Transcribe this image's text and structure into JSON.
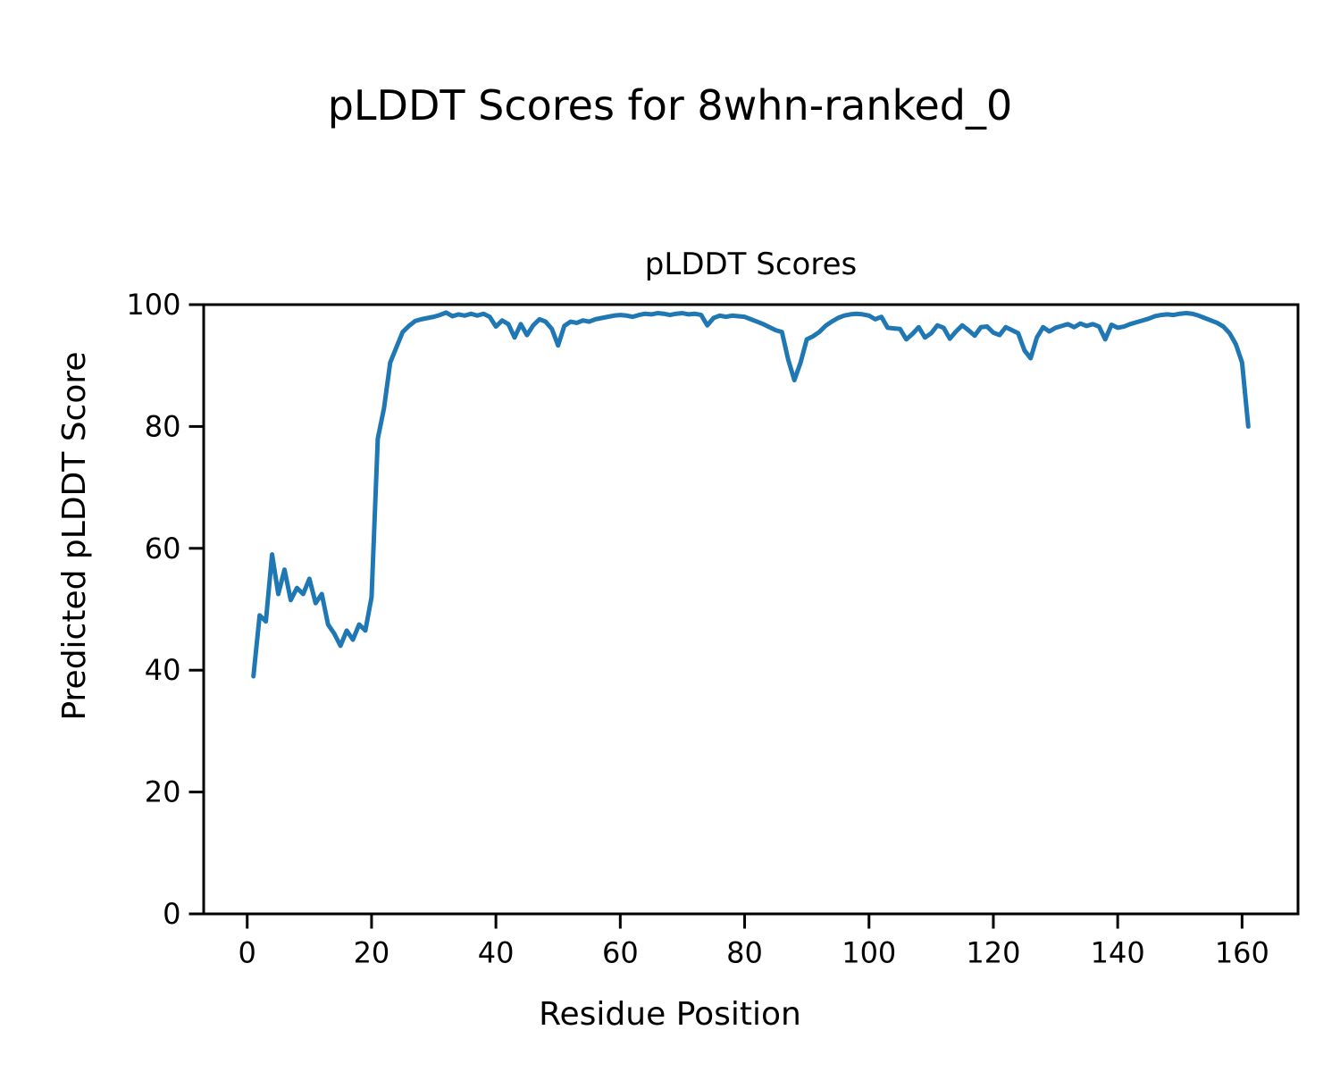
{
  "figure": {
    "suptitle": "pLDDT Scores for 8whn-ranked_0",
    "axes_title": "pLDDT Scores",
    "xlabel": "Residue Position",
    "ylabel": "Predicted pLDDT Score"
  },
  "chart_data": {
    "type": "line",
    "title": "pLDDT Scores",
    "suptitle": "pLDDT Scores for 8whn-ranked_0",
    "xlabel": "Residue Position",
    "ylabel": "Predicted pLDDT Score",
    "grid": false,
    "legend": null,
    "line_color": "#1f77b4",
    "line_width": 5,
    "axis_color": "#000000",
    "xlim": [
      -7,
      169
    ],
    "ylim": [
      0,
      100
    ],
    "xticks": [
      0,
      20,
      40,
      60,
      80,
      100,
      120,
      140,
      160
    ],
    "yticks": [
      0,
      20,
      40,
      60,
      80,
      100
    ],
    "x_positions": {
      "start": 1,
      "end": 161,
      "step": 1
    },
    "series": [
      {
        "name": "pLDDT",
        "y": [
          39.0,
          49.0,
          48.0,
          59.0,
          52.5,
          56.5,
          51.5,
          53.5,
          52.5,
          55.0,
          51.0,
          52.5,
          47.5,
          46.0,
          44.0,
          46.5,
          45.0,
          47.5,
          46.5,
          52.0,
          78.0,
          83.0,
          90.5,
          93.0,
          95.5,
          96.5,
          97.3,
          97.6,
          97.8,
          98.0,
          98.3,
          98.7,
          98.1,
          98.4,
          98.2,
          98.5,
          98.2,
          98.5,
          98.0,
          96.4,
          97.4,
          96.8,
          94.6,
          96.8,
          95.0,
          96.6,
          97.6,
          97.2,
          96.0,
          93.3,
          96.5,
          97.2,
          97.0,
          97.4,
          97.2,
          97.6,
          97.8,
          98.0,
          98.2,
          98.3,
          98.2,
          98.0,
          98.3,
          98.5,
          98.4,
          98.6,
          98.5,
          98.3,
          98.5,
          98.6,
          98.4,
          98.5,
          98.3,
          96.6,
          97.8,
          98.2,
          98.0,
          98.2,
          98.1,
          98.0,
          97.6,
          97.2,
          96.8,
          96.3,
          95.8,
          95.5,
          91.0,
          87.6,
          90.5,
          94.3,
          94.8,
          95.5,
          96.5,
          97.2,
          97.8,
          98.2,
          98.4,
          98.5,
          98.4,
          98.2,
          97.6,
          98.0,
          96.2,
          96.1,
          96.0,
          94.3,
          95.2,
          96.3,
          94.6,
          95.3,
          96.6,
          96.2,
          94.4,
          95.6,
          96.6,
          95.8,
          94.9,
          96.3,
          96.4,
          95.4,
          95.0,
          96.3,
          95.8,
          95.3,
          92.5,
          91.2,
          94.6,
          96.3,
          95.6,
          96.2,
          96.5,
          96.8,
          96.3,
          96.9,
          96.5,
          96.8,
          96.4,
          94.3,
          96.7,
          96.2,
          96.4,
          96.8,
          97.1,
          97.4,
          97.7,
          98.1,
          98.3,
          98.4,
          98.3,
          98.5,
          98.6,
          98.5,
          98.2,
          97.8,
          97.4,
          97.0,
          96.4,
          95.3,
          93.5,
          90.5,
          80.0
        ]
      }
    ]
  }
}
